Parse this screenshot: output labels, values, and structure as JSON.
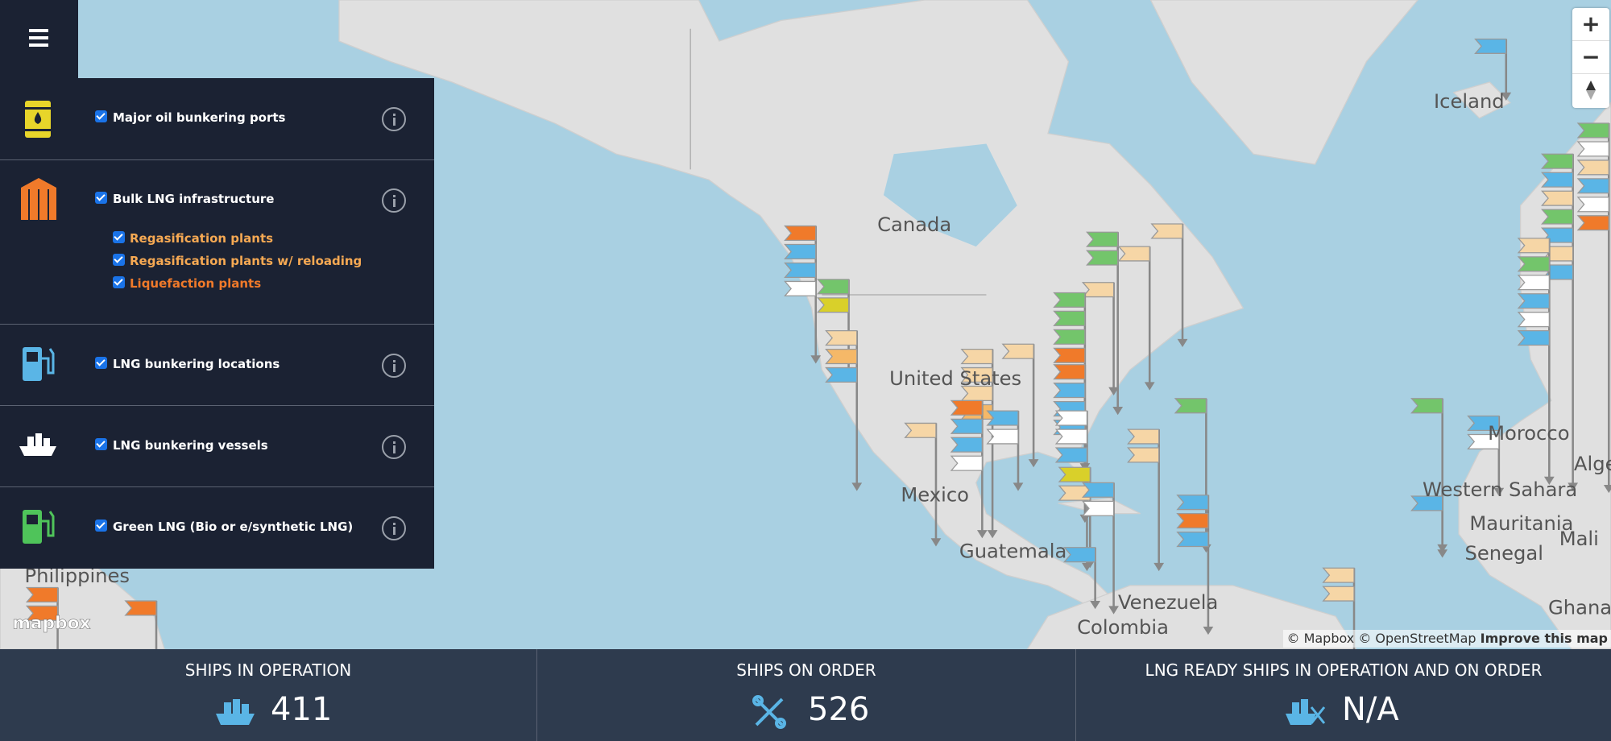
{
  "menu": {
    "layers": [
      {
        "label": "Major oil bunkering ports"
      },
      {
        "label": "Bulk LNG infrastructure",
        "sublayers": [
          "Regasification plants",
          "Regasification plants w/ reloading",
          "Liquefaction plants"
        ]
      },
      {
        "label": "LNG bunkering locations"
      },
      {
        "label": "LNG bunkering vessels"
      },
      {
        "label": "Green LNG (Bio or e/synthetic LNG)"
      }
    ]
  },
  "map": {
    "labels": [
      "Canada",
      "United States",
      "Mexico",
      "Guatemala",
      "Venezuela",
      "Colombia",
      "Iceland",
      "Morocco",
      "Western Sahara",
      "Mauritania",
      "Senegal",
      "Mali",
      "Alge",
      "Ghana",
      "Philippines"
    ],
    "logo": "mapbox",
    "attribution": "© Mapbox © OpenStreetMap",
    "improve": "Improve this map",
    "zoom_in": "+",
    "zoom_out": "−"
  },
  "stats": [
    {
      "label": "SHIPS IN OPERATION",
      "value": 411
    },
    {
      "label": "SHIPS ON ORDER",
      "value": 526
    },
    {
      "label": "LNG READY SHIPS IN OPERATION AND ON ORDER",
      "value": "N/A"
    }
  ]
}
